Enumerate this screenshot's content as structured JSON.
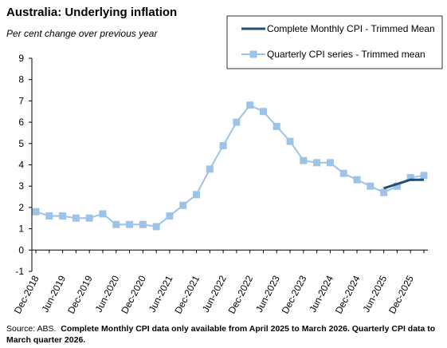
{
  "chart_data": {
    "type": "line",
    "title": "Australia: Underlying inflation",
    "subtitle": "Per cent change over previous year",
    "source": "Source: ABS.",
    "note": "Complete Monthly CPI data only available from April 2025 to March 2026. Quarterly CPI data to March quarter 2026.",
    "categories": [
      "Dec-2018",
      null,
      "Jun-2019",
      null,
      "Dec-2019",
      null,
      "Jun-2020",
      null,
      "Dec-2020",
      null,
      "Jun-2021",
      null,
      "Dec-2021",
      null,
      "Jun-2022",
      null,
      "Dec-2022",
      null,
      "Jun-2023",
      null,
      "Dec-2023",
      null,
      "Jun-2024",
      null,
      "Dec-2024",
      null,
      "Jun-2025",
      null,
      "Dec-2025",
      null
    ],
    "series": [
      {
        "name": "Complete Monthly CPI - Trimmed Mean",
        "color": "#1f4e79",
        "marker": false,
        "values": [
          null,
          null,
          null,
          null,
          null,
          null,
          null,
          null,
          null,
          null,
          null,
          null,
          null,
          null,
          null,
          null,
          null,
          null,
          null,
          null,
          null,
          null,
          null,
          null,
          null,
          null,
          2.9,
          3.1,
          3.3,
          3.3
        ]
      },
      {
        "name": "Quarterly CPI series - Trimmed mean",
        "color": "#9dc3e6",
        "marker": true,
        "values": [
          1.8,
          1.6,
          1.6,
          1.5,
          1.5,
          1.7,
          1.2,
          1.2,
          1.2,
          1.1,
          1.6,
          2.1,
          2.6,
          3.8,
          4.9,
          6.0,
          6.8,
          6.5,
          5.8,
          5.1,
          4.2,
          4.1,
          4.1,
          3.6,
          3.3,
          3.0,
          2.7,
          3.0,
          3.4,
          3.5
        ]
      }
    ],
    "ylim": [
      -1,
      9
    ],
    "yticks": [
      -1,
      0,
      1,
      2,
      3,
      4,
      5,
      6,
      7,
      8,
      9
    ],
    "grid": false,
    "legend": "upper right"
  }
}
